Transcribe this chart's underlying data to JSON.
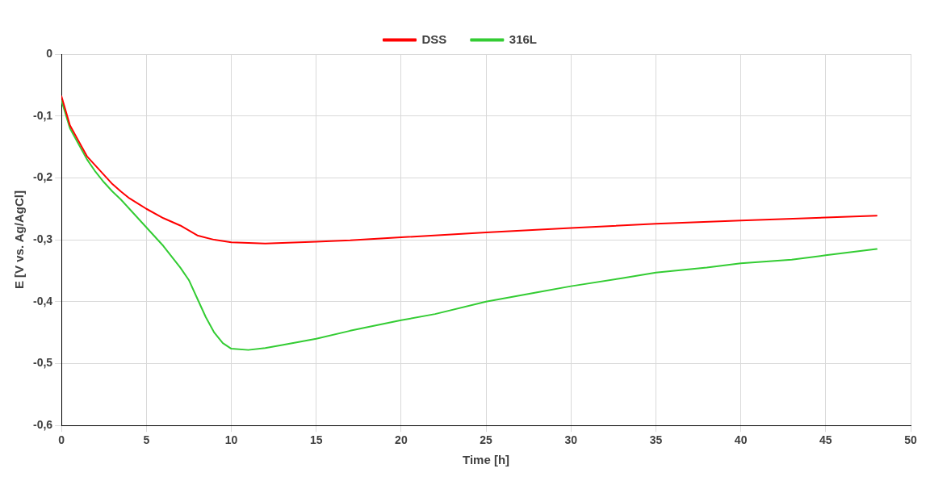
{
  "chart_data": {
    "type": "line",
    "xlabel": "Time [h]",
    "ylabel": "E [V vs. Ag/AgCl]",
    "xlim": [
      0,
      50
    ],
    "xticks": [
      0,
      5,
      10,
      15,
      20,
      25,
      30,
      35,
      40,
      45,
      50
    ],
    "ylim": [
      -0.6,
      0
    ],
    "yticks": [
      {
        "value": -0.6,
        "label": "-0,6"
      },
      {
        "value": -0.5,
        "label": "-0,5"
      },
      {
        "value": -0.4,
        "label": "-0,4"
      },
      {
        "value": -0.3,
        "label": "-0,3"
      },
      {
        "value": -0.2,
        "label": "-0,2"
      },
      {
        "value": -0.1,
        "label": "-0,1"
      },
      0
    ],
    "grid": true,
    "legend": "top",
    "marker": "none",
    "line_style": "solid",
    "series": [
      {
        "name": "DSS",
        "color": "#ff0000",
        "x": [
          0,
          0.5,
          1,
          1.5,
          2,
          2.5,
          3,
          3.5,
          4,
          5,
          6,
          7,
          8,
          9,
          10,
          11,
          12,
          13,
          15,
          17,
          20,
          25,
          30,
          35,
          40,
          45,
          48
        ],
        "values": [
          -0.068,
          -0.115,
          -0.14,
          -0.165,
          -0.18,
          -0.195,
          -0.21,
          -0.222,
          -0.233,
          -0.25,
          -0.265,
          -0.277,
          -0.293,
          -0.3,
          -0.304,
          -0.305,
          -0.306,
          -0.305,
          -0.303,
          -0.301,
          -0.296,
          -0.288,
          -0.281,
          -0.274,
          -0.269,
          -0.264,
          -0.261
        ]
      },
      {
        "name": "316L",
        "color": "#33cc33",
        "x": [
          0,
          0.5,
          1,
          1.5,
          2,
          2.5,
          3,
          3.5,
          4,
          5,
          6,
          7,
          7.5,
          8,
          8.5,
          9,
          9.5,
          10,
          11,
          12,
          13,
          15,
          17,
          20,
          22,
          25,
          28,
          30,
          33,
          35,
          38,
          40,
          43,
          45,
          48
        ],
        "values": [
          -0.075,
          -0.12,
          -0.145,
          -0.17,
          -0.19,
          -0.207,
          -0.222,
          -0.235,
          -0.25,
          -0.28,
          -0.31,
          -0.345,
          -0.365,
          -0.395,
          -0.425,
          -0.45,
          -0.467,
          -0.476,
          -0.478,
          -0.475,
          -0.47,
          -0.46,
          -0.447,
          -0.43,
          -0.42,
          -0.4,
          -0.385,
          -0.375,
          -0.362,
          -0.353,
          -0.345,
          -0.338,
          -0.332,
          -0.325,
          -0.315
        ]
      }
    ]
  }
}
